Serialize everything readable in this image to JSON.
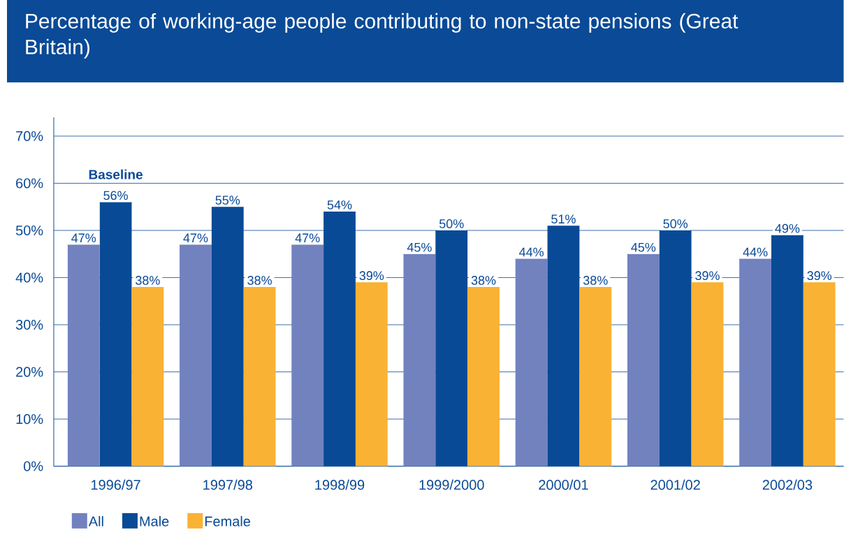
{
  "chart_data": {
    "type": "bar",
    "title": "Percentage of working-age people contributing to non-state pensions (Great Britain)",
    "categories": [
      "1996/97",
      "1997/98",
      "1998/99",
      "1999/2000",
      "2000/01",
      "2001/02",
      "2002/03"
    ],
    "series": [
      {
        "name": "All",
        "color": "#7282bf",
        "values": [
          47,
          47,
          47,
          45,
          44,
          45,
          44
        ],
        "value_labels": [
          "47%",
          "47%",
          "47%",
          "45%",
          "44%",
          "45%",
          "44%"
        ]
      },
      {
        "name": "Male",
        "color": "#084a96",
        "values": [
          56,
          55,
          54,
          50,
          51,
          50,
          49
        ],
        "value_labels": [
          "56%",
          "55%",
          "54%",
          "50%",
          "51%",
          "50%",
          "49%"
        ]
      },
      {
        "name": "Female",
        "color": "#f9b233",
        "values": [
          38,
          38,
          39,
          38,
          38,
          39,
          39
        ],
        "value_labels": [
          "38%",
          "38%",
          "39%",
          "38%",
          "38%",
          "39%",
          "39%"
        ]
      }
    ],
    "ylim": [
      0,
      74
    ],
    "yticks": [
      {
        "value": 0,
        "label": "0%"
      },
      {
        "value": 10,
        "label": "10%"
      },
      {
        "value": 20,
        "label": "20%"
      },
      {
        "value": 30,
        "label": "30%"
      },
      {
        "value": 40,
        "label": "40%"
      },
      {
        "value": 50,
        "label": "50%"
      },
      {
        "value": 60,
        "label": "60%"
      },
      {
        "value": 70,
        "label": "70%"
      }
    ],
    "grid": "y",
    "legend": "bottom left",
    "annotations": [
      "Baseline"
    ]
  }
}
